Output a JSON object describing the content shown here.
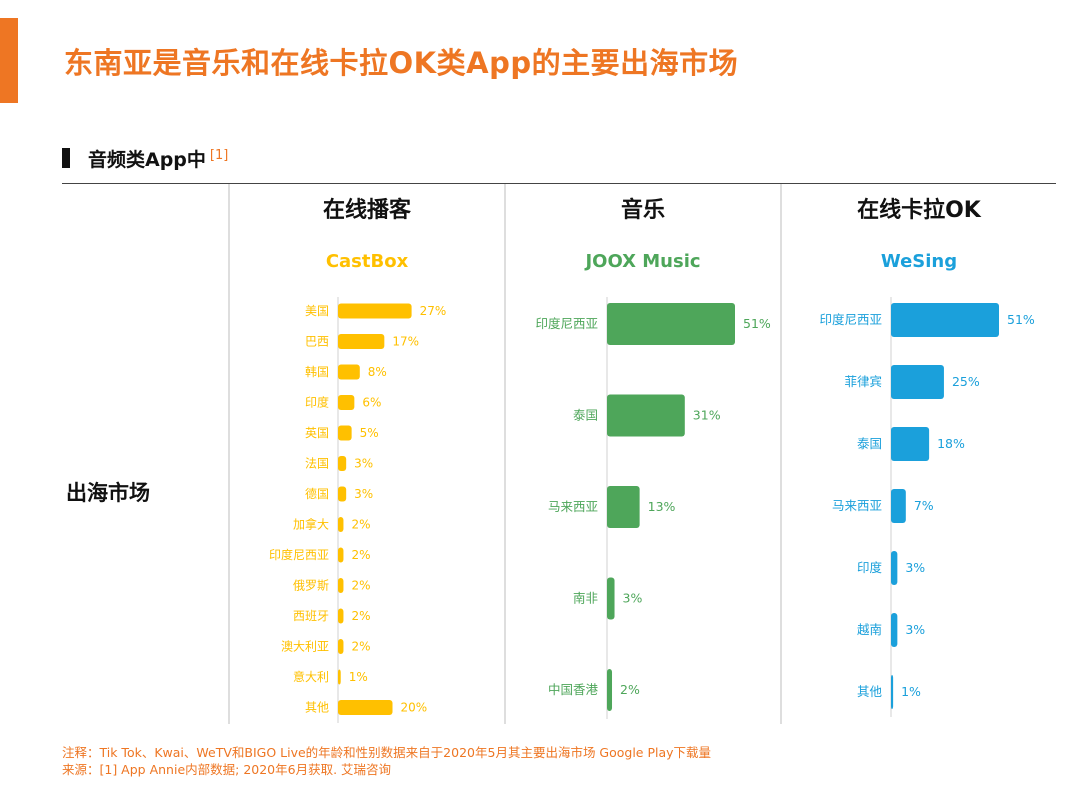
{
  "title": "东南亚是音乐和在线卡拉OK类App的主要出海市场",
  "section": {
    "label": "音频类App中",
    "ref": "[1]"
  },
  "row_label": "出海市场",
  "colors": {
    "accent": "#EE7623",
    "castbox": "#FFC000",
    "joox": "#4EA65A",
    "wesing": "#1BA0DB"
  },
  "chart_data": [
    {
      "type": "bar",
      "orientation": "horizontal",
      "category_title": "在线播客",
      "app_name": "CastBox",
      "color": "#FFC000",
      "categories": [
        "美国",
        "巴西",
        "韩国",
        "印度",
        "英国",
        "法国",
        "德国",
        "加拿大",
        "印度尼西亚",
        "俄罗斯",
        "西班牙",
        "澳大利亚",
        "意大利",
        "其他"
      ],
      "values": [
        27,
        17,
        8,
        6,
        5,
        3,
        3,
        2,
        2,
        2,
        2,
        2,
        1,
        20
      ],
      "unit": "%",
      "xlim": [
        0,
        51
      ]
    },
    {
      "type": "bar",
      "orientation": "horizontal",
      "category_title": "音乐",
      "app_name": "JOOX Music",
      "color": "#4EA65A",
      "categories": [
        "印度尼西亚",
        "泰国",
        "马来西亚",
        "南非",
        "中国香港"
      ],
      "values": [
        51,
        31,
        13,
        3,
        2
      ],
      "unit": "%",
      "xlim": [
        0,
        51
      ]
    },
    {
      "type": "bar",
      "orientation": "horizontal",
      "category_title": "在线卡拉OK",
      "app_name": "WeSing",
      "color": "#1BA0DB",
      "categories": [
        "印度尼西亚",
        "菲律宾",
        "泰国",
        "马来西亚",
        "印度",
        "越南",
        "其他"
      ],
      "values": [
        51,
        25,
        18,
        7,
        3,
        3,
        1
      ],
      "unit": "%",
      "xlim": [
        0,
        51
      ]
    }
  ],
  "footnotes": {
    "note": "注释：Tik Tok、Kwai、WeTV和BIGO Live的年龄和性别数据来自于2020年5月其主要出海市场 Google Play下载量",
    "source": "来源：[1] App Annie内部数据; 2020年6月获取. 艾瑞咨询"
  }
}
